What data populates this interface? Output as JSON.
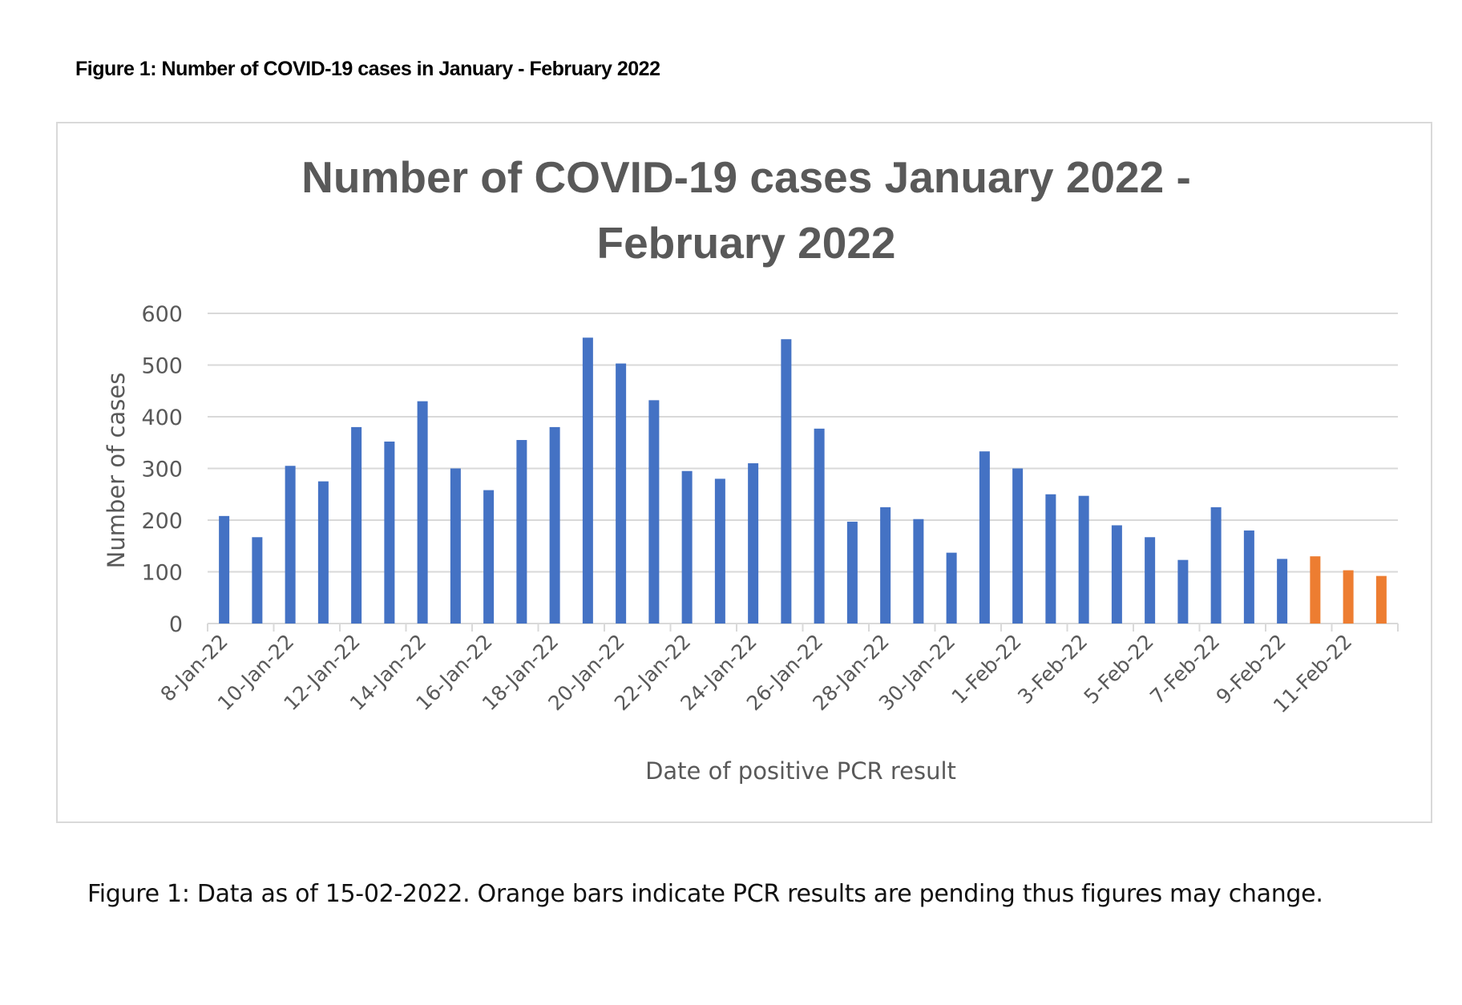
{
  "heading": "Figure 1: Number of COVID-19 cases in January - February 2022",
  "caption": "Figure 1: Data as of 15-02-2022. Orange bars indicate PCR results are pending thus figures may change.",
  "chart_data": {
    "type": "bar",
    "title_lines": [
      "Number of COVID-19 cases January 2022 -",
      "February 2022"
    ],
    "xlabel": "Date of positive PCR result",
    "ylabel": "Number of cases",
    "ylim": [
      0,
      600
    ],
    "yticks": [
      "0",
      "100",
      "200",
      "300",
      "400",
      "500",
      "600"
    ],
    "grid": true,
    "categories": [
      "8-Jan-22",
      "9-Jan-22",
      "10-Jan-22",
      "11-Jan-22",
      "12-Jan-22",
      "13-Jan-22",
      "14-Jan-22",
      "15-Jan-22",
      "16-Jan-22",
      "17-Jan-22",
      "18-Jan-22",
      "19-Jan-22",
      "20-Jan-22",
      "21-Jan-22",
      "22-Jan-22",
      "23-Jan-22",
      "24-Jan-22",
      "25-Jan-22",
      "26-Jan-22",
      "27-Jan-22",
      "28-Jan-22",
      "29-Jan-22",
      "30-Jan-22",
      "31-Jan-22",
      "1-Feb-22",
      "2-Feb-22",
      "3-Feb-22",
      "4-Feb-22",
      "5-Feb-22",
      "6-Feb-22",
      "7-Feb-22",
      "8-Feb-22",
      "9-Feb-22",
      "10-Feb-22",
      "11-Feb-22",
      "12-Feb-22"
    ],
    "tick_labels": [
      "8-Jan-22",
      "10-Jan-22",
      "12-Jan-22",
      "14-Jan-22",
      "16-Jan-22",
      "18-Jan-22",
      "20-Jan-22",
      "22-Jan-22",
      "24-Jan-22",
      "26-Jan-22",
      "28-Jan-22",
      "30-Jan-22",
      "1-Feb-22",
      "3-Feb-22",
      "5-Feb-22",
      "7-Feb-22",
      "9-Feb-22",
      "11-Feb-22"
    ],
    "values": [
      208,
      167,
      305,
      275,
      380,
      352,
      430,
      300,
      258,
      355,
      380,
      553,
      503,
      432,
      295,
      280,
      310,
      550,
      377,
      197,
      225,
      202,
      137,
      333,
      300,
      250,
      247,
      190,
      167,
      123,
      225,
      180,
      125,
      130,
      103,
      92
    ],
    "pending": [
      false,
      false,
      false,
      false,
      false,
      false,
      false,
      false,
      false,
      false,
      false,
      false,
      false,
      false,
      false,
      false,
      false,
      false,
      false,
      false,
      false,
      false,
      false,
      false,
      false,
      false,
      false,
      false,
      false,
      false,
      false,
      false,
      false,
      true,
      true,
      true
    ],
    "colors": {
      "confirmed": "#4472C4",
      "pending": "#ED7D31",
      "text": "#595959",
      "grid": "#d9d9d9"
    }
  }
}
